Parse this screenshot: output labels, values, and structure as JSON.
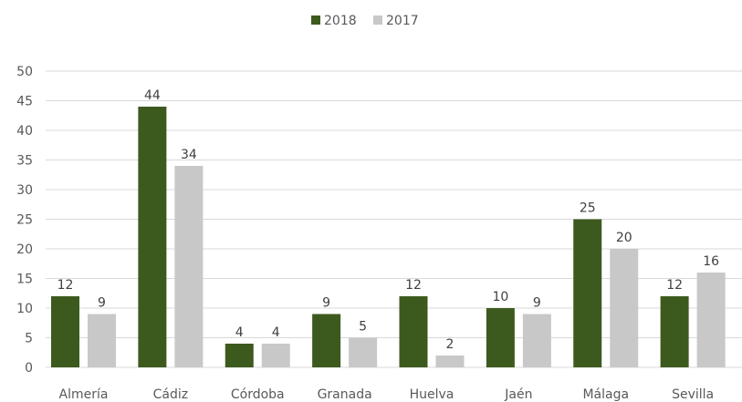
{
  "chart_data": {
    "type": "bar",
    "title": "",
    "xlabel": "",
    "ylabel": "",
    "ylim": [
      0,
      50
    ],
    "yticks": [
      0,
      5,
      10,
      15,
      20,
      25,
      30,
      35,
      40,
      45,
      50
    ],
    "grid": true,
    "legend_position": "top-center",
    "categories": [
      "Almería",
      "Cádiz",
      "Córdoba",
      "Granada",
      "Huelva",
      "Jaén",
      "Málaga",
      "Sevilla"
    ],
    "series": [
      {
        "name": "2018",
        "color": "#3d5a1e",
        "values": [
          12,
          44,
          4,
          9,
          12,
          10,
          25,
          12
        ]
      },
      {
        "name": "2017",
        "color": "#c8c8c8",
        "values": [
          9,
          34,
          4,
          5,
          2,
          9,
          20,
          16
        ]
      }
    ]
  }
}
